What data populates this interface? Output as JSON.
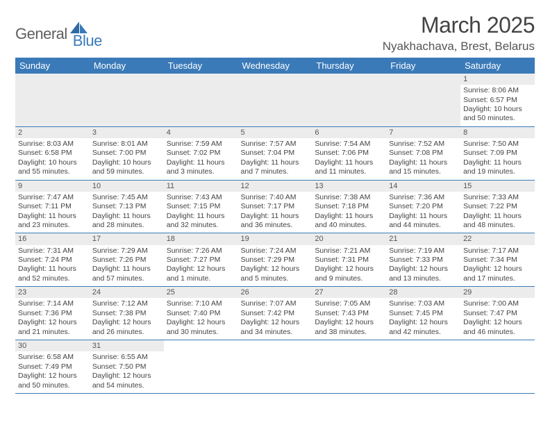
{
  "logo": {
    "part1": "General",
    "part2": "Blue"
  },
  "title": "March 2025",
  "location": "Nyakhachava, Brest, Belarus",
  "colors": {
    "header_bg": "#3a7ab8",
    "header_text": "#ffffff",
    "grid_line": "#3a7ab8",
    "daynum_bg": "#ececec",
    "body_text": "#444444"
  },
  "weekdays": [
    "Sunday",
    "Monday",
    "Tuesday",
    "Wednesday",
    "Thursday",
    "Friday",
    "Saturday"
  ],
  "weeks": [
    [
      null,
      null,
      null,
      null,
      null,
      null,
      {
        "n": "1",
        "sr": "Sunrise: 8:06 AM",
        "ss": "Sunset: 6:57 PM",
        "dl1": "Daylight: 10 hours",
        "dl2": "and 50 minutes."
      }
    ],
    [
      {
        "n": "2",
        "sr": "Sunrise: 8:03 AM",
        "ss": "Sunset: 6:58 PM",
        "dl1": "Daylight: 10 hours",
        "dl2": "and 55 minutes."
      },
      {
        "n": "3",
        "sr": "Sunrise: 8:01 AM",
        "ss": "Sunset: 7:00 PM",
        "dl1": "Daylight: 10 hours",
        "dl2": "and 59 minutes."
      },
      {
        "n": "4",
        "sr": "Sunrise: 7:59 AM",
        "ss": "Sunset: 7:02 PM",
        "dl1": "Daylight: 11 hours",
        "dl2": "and 3 minutes."
      },
      {
        "n": "5",
        "sr": "Sunrise: 7:57 AM",
        "ss": "Sunset: 7:04 PM",
        "dl1": "Daylight: 11 hours",
        "dl2": "and 7 minutes."
      },
      {
        "n": "6",
        "sr": "Sunrise: 7:54 AM",
        "ss": "Sunset: 7:06 PM",
        "dl1": "Daylight: 11 hours",
        "dl2": "and 11 minutes."
      },
      {
        "n": "7",
        "sr": "Sunrise: 7:52 AM",
        "ss": "Sunset: 7:08 PM",
        "dl1": "Daylight: 11 hours",
        "dl2": "and 15 minutes."
      },
      {
        "n": "8",
        "sr": "Sunrise: 7:50 AM",
        "ss": "Sunset: 7:09 PM",
        "dl1": "Daylight: 11 hours",
        "dl2": "and 19 minutes."
      }
    ],
    [
      {
        "n": "9",
        "sr": "Sunrise: 7:47 AM",
        "ss": "Sunset: 7:11 PM",
        "dl1": "Daylight: 11 hours",
        "dl2": "and 23 minutes."
      },
      {
        "n": "10",
        "sr": "Sunrise: 7:45 AM",
        "ss": "Sunset: 7:13 PM",
        "dl1": "Daylight: 11 hours",
        "dl2": "and 28 minutes."
      },
      {
        "n": "11",
        "sr": "Sunrise: 7:43 AM",
        "ss": "Sunset: 7:15 PM",
        "dl1": "Daylight: 11 hours",
        "dl2": "and 32 minutes."
      },
      {
        "n": "12",
        "sr": "Sunrise: 7:40 AM",
        "ss": "Sunset: 7:17 PM",
        "dl1": "Daylight: 11 hours",
        "dl2": "and 36 minutes."
      },
      {
        "n": "13",
        "sr": "Sunrise: 7:38 AM",
        "ss": "Sunset: 7:18 PM",
        "dl1": "Daylight: 11 hours",
        "dl2": "and 40 minutes."
      },
      {
        "n": "14",
        "sr": "Sunrise: 7:36 AM",
        "ss": "Sunset: 7:20 PM",
        "dl1": "Daylight: 11 hours",
        "dl2": "and 44 minutes."
      },
      {
        "n": "15",
        "sr": "Sunrise: 7:33 AM",
        "ss": "Sunset: 7:22 PM",
        "dl1": "Daylight: 11 hours",
        "dl2": "and 48 minutes."
      }
    ],
    [
      {
        "n": "16",
        "sr": "Sunrise: 7:31 AM",
        "ss": "Sunset: 7:24 PM",
        "dl1": "Daylight: 11 hours",
        "dl2": "and 52 minutes."
      },
      {
        "n": "17",
        "sr": "Sunrise: 7:29 AM",
        "ss": "Sunset: 7:26 PM",
        "dl1": "Daylight: 11 hours",
        "dl2": "and 57 minutes."
      },
      {
        "n": "18",
        "sr": "Sunrise: 7:26 AM",
        "ss": "Sunset: 7:27 PM",
        "dl1": "Daylight: 12 hours",
        "dl2": "and 1 minute."
      },
      {
        "n": "19",
        "sr": "Sunrise: 7:24 AM",
        "ss": "Sunset: 7:29 PM",
        "dl1": "Daylight: 12 hours",
        "dl2": "and 5 minutes."
      },
      {
        "n": "20",
        "sr": "Sunrise: 7:21 AM",
        "ss": "Sunset: 7:31 PM",
        "dl1": "Daylight: 12 hours",
        "dl2": "and 9 minutes."
      },
      {
        "n": "21",
        "sr": "Sunrise: 7:19 AM",
        "ss": "Sunset: 7:33 PM",
        "dl1": "Daylight: 12 hours",
        "dl2": "and 13 minutes."
      },
      {
        "n": "22",
        "sr": "Sunrise: 7:17 AM",
        "ss": "Sunset: 7:34 PM",
        "dl1": "Daylight: 12 hours",
        "dl2": "and 17 minutes."
      }
    ],
    [
      {
        "n": "23",
        "sr": "Sunrise: 7:14 AM",
        "ss": "Sunset: 7:36 PM",
        "dl1": "Daylight: 12 hours",
        "dl2": "and 21 minutes."
      },
      {
        "n": "24",
        "sr": "Sunrise: 7:12 AM",
        "ss": "Sunset: 7:38 PM",
        "dl1": "Daylight: 12 hours",
        "dl2": "and 26 minutes."
      },
      {
        "n": "25",
        "sr": "Sunrise: 7:10 AM",
        "ss": "Sunset: 7:40 PM",
        "dl1": "Daylight: 12 hours",
        "dl2": "and 30 minutes."
      },
      {
        "n": "26",
        "sr": "Sunrise: 7:07 AM",
        "ss": "Sunset: 7:42 PM",
        "dl1": "Daylight: 12 hours",
        "dl2": "and 34 minutes."
      },
      {
        "n": "27",
        "sr": "Sunrise: 7:05 AM",
        "ss": "Sunset: 7:43 PM",
        "dl1": "Daylight: 12 hours",
        "dl2": "and 38 minutes."
      },
      {
        "n": "28",
        "sr": "Sunrise: 7:03 AM",
        "ss": "Sunset: 7:45 PM",
        "dl1": "Daylight: 12 hours",
        "dl2": "and 42 minutes."
      },
      {
        "n": "29",
        "sr": "Sunrise: 7:00 AM",
        "ss": "Sunset: 7:47 PM",
        "dl1": "Daylight: 12 hours",
        "dl2": "and 46 minutes."
      }
    ],
    [
      {
        "n": "30",
        "sr": "Sunrise: 6:58 AM",
        "ss": "Sunset: 7:49 PM",
        "dl1": "Daylight: 12 hours",
        "dl2": "and 50 minutes."
      },
      {
        "n": "31",
        "sr": "Sunrise: 6:55 AM",
        "ss": "Sunset: 7:50 PM",
        "dl1": "Daylight: 12 hours",
        "dl2": "and 54 minutes."
      },
      null,
      null,
      null,
      null,
      null
    ]
  ]
}
